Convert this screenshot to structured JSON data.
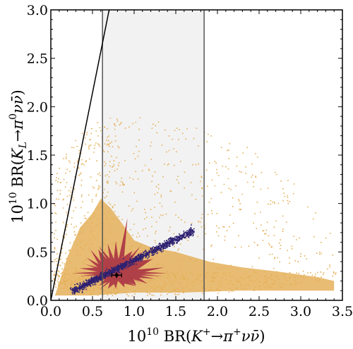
{
  "chart_data": {
    "type": "scatter",
    "title": "",
    "xlabel": {
      "prefix": "10",
      "exp": "10",
      "text": " BR(",
      "particle": "K",
      "charge": "+",
      "arrow": "→",
      "pi": "π",
      "pi_charge": "+",
      "nu": "νν̄",
      "close": ")"
    },
    "ylabel": {
      "prefix": "10",
      "exp": "10",
      "text": " BR(",
      "particle": "K",
      "sub": "L",
      "arrow": "→",
      "pi": "π",
      "pi_charge": "0",
      "nu": "νν̄",
      "close": ")"
    },
    "xlim": [
      0.0,
      3.5
    ],
    "ylim": [
      0.0,
      3.0
    ],
    "xticks": [
      "0.0",
      "0.5",
      "1.0",
      "1.5",
      "2.0",
      "2.5",
      "3.0",
      "3.5"
    ],
    "yticks": [
      "0.0",
      "0.5",
      "1.0",
      "1.5",
      "2.0",
      "2.5",
      "3.0"
    ],
    "grid": false,
    "legend": "none",
    "band": {
      "x_min": 0.62,
      "x_max": 1.84,
      "color": "#f2f2f2"
    },
    "bound_line": {
      "x": [
        0.0,
        0.7
      ],
      "y": [
        0.0,
        3.0
      ]
    },
    "sm_point": {
      "x": 0.79,
      "y": 0.26,
      "x_err": 0.06,
      "y_err": 0.03
    },
    "clouds": [
      {
        "color": "#e5b05a",
        "center": [
          0.8,
          0.3
        ]
      },
      {
        "color": "#b04048",
        "center": [
          0.78,
          0.28
        ]
      },
      {
        "color": "#2e2070",
        "from": [
          0.25,
          0.1
        ],
        "to": [
          1.7,
          0.72
        ]
      }
    ],
    "colors": {
      "orange": "#e5b05a",
      "red": "#b04048",
      "purple": "#2e2070",
      "frame": "#000000"
    }
  }
}
